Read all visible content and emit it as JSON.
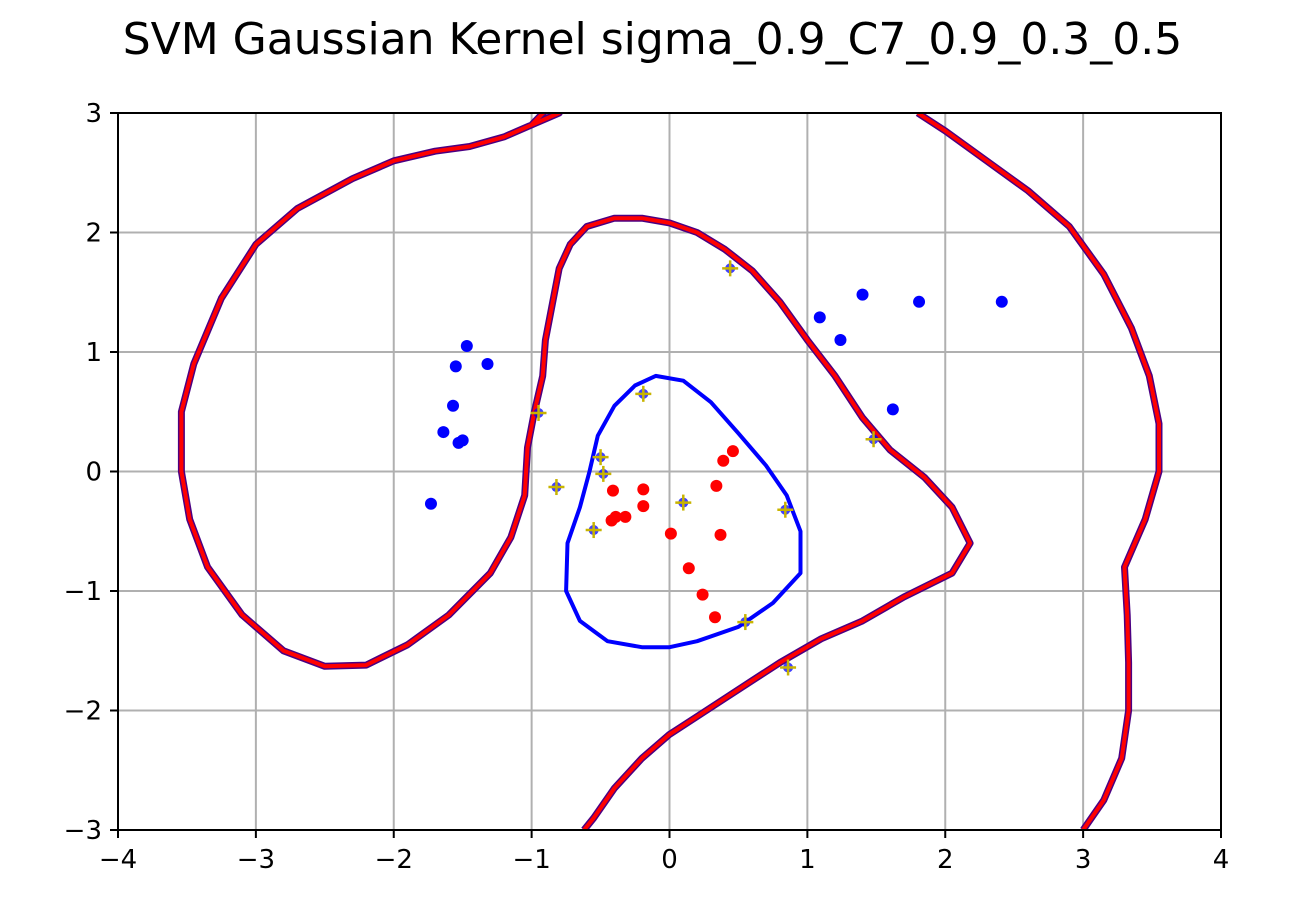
{
  "chart_data": {
    "type": "scatter",
    "title": "SVM Gaussian Kernel sigma_0.9_C7_0.9_0.3_0.5",
    "xlabel": "",
    "ylabel": "",
    "xlim": [
      -4,
      4
    ],
    "ylim": [
      -3,
      3
    ],
    "grid": true,
    "x_ticks": [
      -4,
      -3,
      -2,
      -1,
      0,
      1,
      2,
      3,
      4
    ],
    "y_ticks": [
      -3,
      -2,
      -1,
      0,
      1,
      2,
      3
    ],
    "x_tick_labels": [
      "−4",
      "−3",
      "−2",
      "−1",
      "0",
      "1",
      "2",
      "3",
      "4"
    ],
    "y_tick_labels": [
      "−3",
      "−2",
      "−1",
      "0",
      "1",
      "2",
      "3"
    ],
    "colors": {
      "class_pos": "#0000ff",
      "class_neg": "#ff0000",
      "boundary_outer": "#ff0000",
      "boundary_outer_edge": "#4b0082",
      "boundary_inner": "#0000ff",
      "support_marker": "#c8b400",
      "grid": "#b0b0b0"
    },
    "series": [
      {
        "values": [
          [
            -1.47,
            1.05
          ],
          [
            -1.55,
            0.88
          ],
          [
            -1.32,
            0.9
          ],
          [
            -1.57,
            0.55
          ],
          [
            -1.64,
            0.33
          ],
          [
            -1.53,
            0.24
          ],
          [
            -1.5,
            0.26
          ],
          [
            -1.73,
            -0.27
          ],
          [
            1.09,
            1.29
          ],
          [
            1.4,
            1.48
          ],
          [
            1.81,
            1.42
          ],
          [
            2.41,
            1.42
          ],
          [
            1.24,
            1.1
          ],
          [
            1.62,
            0.52
          ]
        ]
      },
      {
        "values": [
          [
            0.46,
            0.17
          ],
          [
            0.39,
            0.09
          ],
          [
            -0.41,
            -0.16
          ],
          [
            -0.19,
            -0.15
          ],
          [
            0.34,
            -0.12
          ],
          [
            -0.19,
            -0.29
          ],
          [
            -0.42,
            -0.41
          ],
          [
            -0.39,
            -0.38
          ],
          [
            -0.32,
            -0.38
          ],
          [
            0.01,
            -0.52
          ],
          [
            0.37,
            -0.53
          ],
          [
            0.14,
            -0.81
          ],
          [
            0.24,
            -1.03
          ],
          [
            0.33,
            -1.22
          ]
        ]
      }
    ],
    "support_vectors": [
      [
        0.44,
        1.7
      ],
      [
        -0.95,
        0.49
      ],
      [
        -0.19,
        0.65
      ],
      [
        -0.5,
        0.12
      ],
      [
        -0.48,
        -0.02
      ],
      [
        -0.82,
        -0.13
      ],
      [
        0.1,
        -0.26
      ],
      [
        0.84,
        -0.32
      ],
      [
        -0.55,
        -0.49
      ],
      [
        1.48,
        0.27
      ],
      [
        0.55,
        -1.26
      ],
      [
        0.86,
        -1.64
      ]
    ],
    "boundary_outer_left": [
      [
        -2.0,
        2.6
      ],
      [
        -1.7,
        2.68
      ],
      [
        -1.45,
        2.72
      ],
      [
        -1.2,
        2.8
      ],
      [
        -1.0,
        2.9
      ],
      [
        -0.8,
        3.0
      ],
      [
        -0.8,
        3.02
      ],
      [
        -0.9,
        3.02
      ],
      [
        -1.0,
        2.9
      ],
      [
        -1.2,
        2.8
      ],
      [
        -1.45,
        2.72
      ],
      [
        -1.7,
        2.68
      ],
      [
        -2.0,
        2.6
      ],
      [
        -2.3,
        2.45
      ],
      [
        -2.7,
        2.2
      ],
      [
        -3.0,
        1.9
      ],
      [
        -3.25,
        1.45
      ],
      [
        -3.45,
        0.9
      ],
      [
        -3.54,
        0.5
      ],
      [
        -3.54,
        0.0
      ],
      [
        -3.48,
        -0.4
      ],
      [
        -3.35,
        -0.8
      ],
      [
        -3.1,
        -1.2
      ],
      [
        -2.8,
        -1.5
      ],
      [
        -2.5,
        -1.63
      ],
      [
        -2.2,
        -1.62
      ],
      [
        -1.9,
        -1.45
      ],
      [
        -1.6,
        -1.2
      ],
      [
        -1.3,
        -0.85
      ],
      [
        -1.15,
        -0.55
      ],
      [
        -1.05,
        -0.2
      ],
      [
        -1.03,
        0.2
      ],
      [
        -0.98,
        0.5
      ],
      [
        -0.92,
        0.8
      ],
      [
        -0.9,
        1.1
      ],
      [
        -0.85,
        1.4
      ],
      [
        -0.8,
        1.7
      ],
      [
        -0.72,
        1.9
      ],
      [
        -0.6,
        2.05
      ],
      [
        -0.4,
        2.12
      ],
      [
        -0.2,
        2.12
      ],
      [
        0.0,
        2.08
      ],
      [
        0.2,
        2.0
      ],
      [
        0.4,
        1.86
      ],
      [
        0.6,
        1.68
      ],
      [
        0.8,
        1.42
      ],
      [
        1.0,
        1.1
      ],
      [
        1.2,
        0.8
      ],
      [
        1.4,
        0.45
      ],
      [
        1.6,
        0.18
      ],
      [
        1.85,
        -0.05
      ],
      [
        2.05,
        -0.3
      ],
      [
        2.18,
        -0.6
      ],
      [
        2.05,
        -0.85
      ],
      [
        1.7,
        -1.05
      ],
      [
        1.4,
        -1.25
      ],
      [
        1.1,
        -1.4
      ],
      [
        0.8,
        -1.6
      ],
      [
        0.6,
        -1.75
      ],
      [
        0.4,
        -1.9
      ],
      [
        0.2,
        -2.05
      ],
      [
        0.0,
        -2.2
      ],
      [
        -0.2,
        -2.4
      ],
      [
        -0.4,
        -2.65
      ],
      [
        -0.55,
        -2.9
      ],
      [
        -0.62,
        -3.0
      ]
    ],
    "boundary_outer_right": [
      [
        1.8,
        3.0
      ],
      [
        2.0,
        2.85
      ],
      [
        2.3,
        2.6
      ],
      [
        2.6,
        2.35
      ],
      [
        2.9,
        2.05
      ],
      [
        3.15,
        1.65
      ],
      [
        3.35,
        1.2
      ],
      [
        3.48,
        0.8
      ],
      [
        3.55,
        0.4
      ],
      [
        3.55,
        0.0
      ],
      [
        3.45,
        -0.4
      ],
      [
        3.3,
        -0.8
      ],
      [
        3.32,
        -1.2
      ],
      [
        3.33,
        -1.6
      ],
      [
        3.33,
        -2.0
      ],
      [
        3.28,
        -2.4
      ],
      [
        3.15,
        -2.75
      ],
      [
        3.0,
        -3.0
      ]
    ],
    "boundary_inner": [
      [
        -0.1,
        0.8
      ],
      [
        0.1,
        0.76
      ],
      [
        0.3,
        0.58
      ],
      [
        0.5,
        0.32
      ],
      [
        0.7,
        0.05
      ],
      [
        0.85,
        -0.2
      ],
      [
        0.95,
        -0.5
      ],
      [
        0.95,
        -0.85
      ],
      [
        0.75,
        -1.1
      ],
      [
        0.5,
        -1.3
      ],
      [
        0.2,
        -1.42
      ],
      [
        0.0,
        -1.47
      ],
      [
        -0.2,
        -1.47
      ],
      [
        -0.45,
        -1.42
      ],
      [
        -0.65,
        -1.25
      ],
      [
        -0.75,
        -1.0
      ],
      [
        -0.74,
        -0.6
      ],
      [
        -0.65,
        -0.3
      ],
      [
        -0.58,
        0.0
      ],
      [
        -0.52,
        0.3
      ],
      [
        -0.4,
        0.55
      ],
      [
        -0.25,
        0.72
      ],
      [
        -0.1,
        0.8
      ]
    ]
  }
}
